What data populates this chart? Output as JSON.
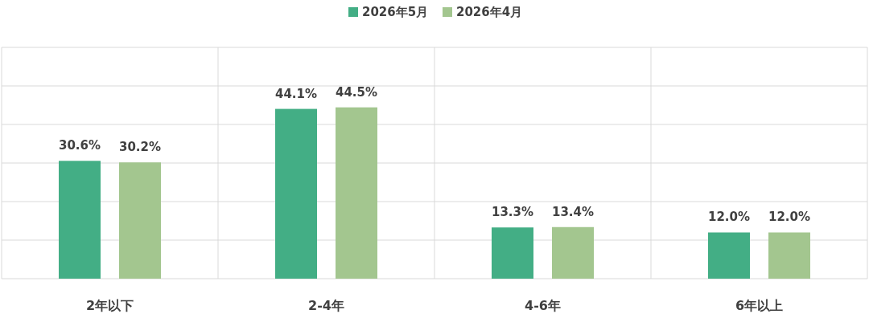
{
  "chart_data": {
    "type": "bar",
    "categories": [
      "2年以下",
      "2-4年",
      "4-6年",
      "6年以上"
    ],
    "series": [
      {
        "name": "2026年5月",
        "color": "#43ae85",
        "values": [
          30.6,
          44.1,
          13.3,
          12.0
        ],
        "value_labels": [
          "30.6%",
          "44.1%",
          "13.3%",
          "12.0%"
        ]
      },
      {
        "name": "2026年4月",
        "color": "#a3c68f",
        "values": [
          30.2,
          44.5,
          13.4,
          12.0
        ],
        "value_labels": [
          "30.2%",
          "44.5%",
          "13.4%",
          "12.0%"
        ]
      }
    ],
    "grid": "y",
    "legend": "top",
    "tick_labels": "x"
  }
}
